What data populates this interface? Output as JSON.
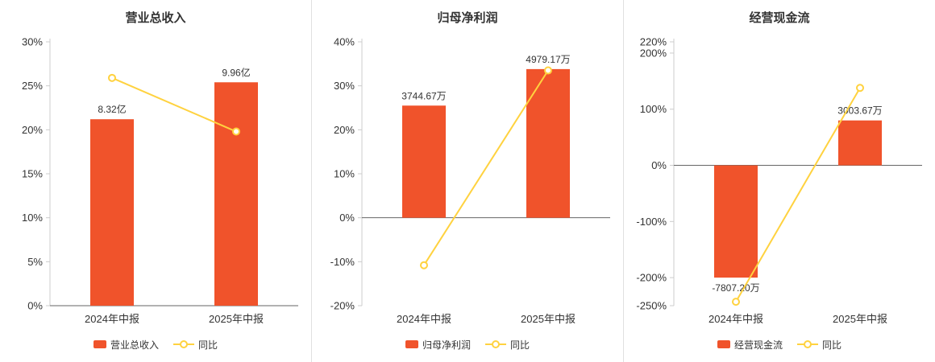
{
  "page": {
    "background": "#ffffff"
  },
  "colors": {
    "bar": "#f0532b",
    "line": "#ffd23f",
    "axis": "#cccccc",
    "zero_line": "#666666",
    "text": "#333333",
    "divider": "#e0e0e0",
    "marker_fill": "#ffffff"
  },
  "chart_data": [
    {
      "type": "bar",
      "title": "营业总收入",
      "categories": [
        "2024年中报",
        "2025年中报"
      ],
      "bar_series": {
        "name": "营业总收入",
        "value_labels": [
          "8.32亿",
          "9.96亿"
        ],
        "plotted_pct": [
          21.2,
          25.4
        ]
      },
      "line_series": {
        "name": "同比",
        "values_pct": [
          25.9,
          19.8
        ]
      },
      "y_ticks_pct": [
        30,
        25,
        20,
        15,
        10,
        5,
        0
      ],
      "ylim_pct": [
        0,
        30
      ],
      "grid": false,
      "legend_position": "bottom"
    },
    {
      "type": "bar",
      "title": "归母净利润",
      "categories": [
        "2024年中报",
        "2025年中报"
      ],
      "bar_series": {
        "name": "归母净利润",
        "value_labels": [
          "3744.67万",
          "4979.17万"
        ],
        "plotted_pct": [
          25.5,
          33.8
        ]
      },
      "line_series": {
        "name": "同比",
        "values_pct": [
          -10.8,
          33.5
        ]
      },
      "y_ticks_pct": [
        40,
        30,
        20,
        10,
        0,
        -10,
        -20
      ],
      "ylim_pct": [
        -20,
        40
      ],
      "grid": false,
      "legend_position": "bottom"
    },
    {
      "type": "bar",
      "title": "经营现金流",
      "categories": [
        "2024年中报",
        "2025年中报"
      ],
      "bar_series": {
        "name": "经营现金流",
        "value_labels": [
          "-7807.20万",
          "3003.67万"
        ],
        "plotted_pct": [
          -200,
          80
        ]
      },
      "line_series": {
        "name": "同比",
        "values_pct": [
          -243,
          138
        ]
      },
      "y_ticks_pct": [
        220,
        200,
        100,
        0,
        -100,
        -200,
        -250
      ],
      "ylim_pct": [
        -250,
        220
      ],
      "grid": false,
      "legend_position": "bottom"
    }
  ]
}
